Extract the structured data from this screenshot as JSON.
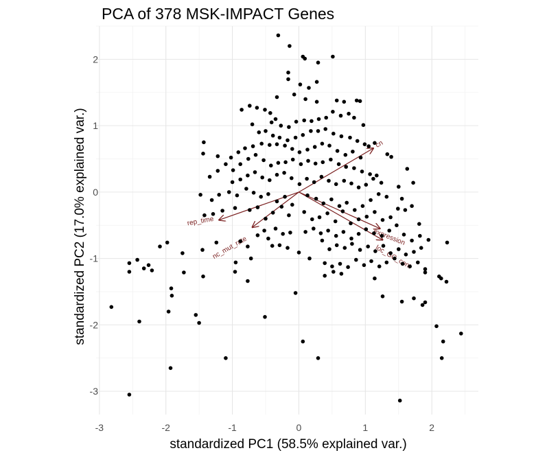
{
  "chart_data": {
    "type": "scatter",
    "title": "PCA of 378 MSK-IMPACT Genes",
    "xlabel": "standardized PC1 (58.5% explained var.)",
    "ylabel": "standardized PC2 (17.0% explained var.)",
    "xlim": [
      -3.05,
      2.7
    ],
    "ylim": [
      -3.35,
      2.5
    ],
    "x_ticks": [
      -3,
      -2,
      -1,
      0,
      1,
      2
    ],
    "x_tick_labels": [
      "-3",
      "-2",
      "-1",
      "0",
      "1",
      "2"
    ],
    "y_ticks": [
      -3,
      -2,
      -1,
      0,
      1,
      2
    ],
    "y_tick_labels": [
      "-3",
      "-2",
      "-1",
      "0",
      "1",
      "2"
    ],
    "grid": true,
    "point_color": "#000000",
    "arrow_color": "#7a1f1f",
    "points": [
      [
        -0.31,
        2.36
      ],
      [
        0.06,
        2.04
      ],
      [
        0.09,
        2.01
      ],
      [
        0.51,
        2.04
      ],
      [
        0.29,
        1.95
      ],
      [
        -0.14,
        2.2
      ],
      [
        -0.16,
        1.8
      ],
      [
        -0.16,
        1.7
      ],
      [
        0.27,
        1.66
      ],
      [
        0.02,
        1.62
      ],
      [
        0.15,
        1.57
      ],
      [
        -0.33,
        1.43
      ],
      [
        -0.07,
        1.47
      ],
      [
        0.1,
        1.4
      ],
      [
        0.27,
        1.36
      ],
      [
        0.57,
        1.38
      ],
      [
        0.68,
        1.36
      ],
      [
        0.87,
        1.38
      ],
      [
        0.92,
        1.37
      ],
      [
        -0.74,
        1.3
      ],
      [
        -0.86,
        1.24
      ],
      [
        -0.63,
        1.27
      ],
      [
        -0.51,
        1.24
      ],
      [
        -0.43,
        1.19
      ],
      [
        -0.41,
        1.05
      ],
      [
        -0.35,
        1.1
      ],
      [
        -0.27,
        1.0
      ],
      [
        -0.15,
        0.98
      ],
      [
        -0.04,
        1.06
      ],
      [
        0.08,
        1.08
      ],
      [
        0.19,
        1.07
      ],
      [
        0.3,
        1.1
      ],
      [
        0.41,
        1.12
      ],
      [
        0.51,
        1.21
      ],
      [
        0.63,
        1.15
      ],
      [
        0.75,
        1.18
      ],
      [
        0.83,
        1.12
      ],
      [
        0.97,
        1.01
      ],
      [
        -0.7,
        1.02
      ],
      [
        -0.6,
        0.9
      ],
      [
        -0.5,
        0.92
      ],
      [
        -0.39,
        0.85
      ],
      [
        -0.29,
        0.82
      ],
      [
        -0.17,
        0.78
      ],
      [
        -0.05,
        0.82
      ],
      [
        0.06,
        0.86
      ],
      [
        0.18,
        0.92
      ],
      [
        0.29,
        0.92
      ],
      [
        0.4,
        0.95
      ],
      [
        0.52,
        0.88
      ],
      [
        0.64,
        0.84
      ],
      [
        0.77,
        0.82
      ],
      [
        0.88,
        0.77
      ],
      [
        0.99,
        0.72
      ],
      [
        1.05,
        0.69
      ],
      [
        1.14,
        0.74
      ],
      [
        -1.02,
        0.52
      ],
      [
        -0.91,
        0.6
      ],
      [
        -0.81,
        0.66
      ],
      [
        -0.69,
        0.69
      ],
      [
        -0.56,
        0.73
      ],
      [
        -0.44,
        0.71
      ],
      [
        -0.33,
        0.72
      ],
      [
        -0.21,
        0.7
      ],
      [
        -0.1,
        0.65
      ],
      [
        0.01,
        0.6
      ],
      [
        0.13,
        0.64
      ],
      [
        0.24,
        0.68
      ],
      [
        0.35,
        0.73
      ],
      [
        0.46,
        0.7
      ],
      [
        0.58,
        0.62
      ],
      [
        0.7,
        0.56
      ],
      [
        0.81,
        0.61
      ],
      [
        0.93,
        0.52
      ],
      [
        -1.43,
        0.75
      ],
      [
        -1.44,
        0.58
      ],
      [
        -1.22,
        0.54
      ],
      [
        -1.1,
        0.42
      ],
      [
        -0.99,
        0.33
      ],
      [
        -0.88,
        0.42
      ],
      [
        -0.76,
        0.5
      ],
      [
        -0.65,
        0.56
      ],
      [
        -0.53,
        0.48
      ],
      [
        -0.42,
        0.4
      ],
      [
        -0.31,
        0.44
      ],
      [
        -0.2,
        0.45
      ],
      [
        -0.09,
        0.49
      ],
      [
        0.03,
        0.42
      ],
      [
        0.14,
        0.47
      ],
      [
        0.25,
        0.43
      ],
      [
        0.36,
        0.45
      ],
      [
        0.48,
        0.49
      ],
      [
        0.6,
        0.42
      ],
      [
        0.71,
        0.38
      ],
      [
        0.83,
        0.36
      ],
      [
        0.95,
        0.31
      ],
      [
        1.07,
        0.27
      ],
      [
        1.17,
        0.25
      ],
      [
        -1.34,
        0.23
      ],
      [
        -1.22,
        0.32
      ],
      [
        -1.0,
        0.15
      ],
      [
        -0.88,
        0.19
      ],
      [
        -0.77,
        0.25
      ],
      [
        -0.66,
        0.3
      ],
      [
        -0.55,
        0.22
      ],
      [
        -0.44,
        0.18
      ],
      [
        -0.33,
        0.26
      ],
      [
        -0.22,
        0.29
      ],
      [
        -0.11,
        0.21
      ],
      [
        0.01,
        0.12
      ],
      [
        0.12,
        0.2
      ],
      [
        0.23,
        0.15
      ],
      [
        0.34,
        0.23
      ],
      [
        0.45,
        0.17
      ],
      [
        0.56,
        0.12
      ],
      [
        0.68,
        0.17
      ],
      [
        0.79,
        0.13
      ],
      [
        0.9,
        0.07
      ],
      [
        1.01,
        0.11
      ],
      [
        1.12,
        0.2
      ],
      [
        1.24,
        0.14
      ],
      [
        1.33,
        0.57
      ],
      [
        1.39,
        0.53
      ],
      [
        -1.48,
        -0.04
      ],
      [
        -1.31,
        -0.12
      ],
      [
        -1.2,
        -0.04
      ],
      [
        -1.05,
        0.0
      ],
      [
        -0.93,
        -0.05
      ],
      [
        -0.79,
        0.05
      ],
      [
        -0.68,
        -0.01
      ],
      [
        -0.57,
        -0.07
      ],
      [
        -0.46,
        -0.03
      ],
      [
        -0.33,
        -0.14
      ],
      [
        -0.21,
        -0.07
      ],
      [
        -0.1,
        -0.19
      ],
      [
        0.13,
        -0.05
      ],
      [
        0.26,
        -0.1
      ],
      [
        0.37,
        -0.17
      ],
      [
        0.49,
        -0.11
      ],
      [
        0.61,
        -0.21
      ],
      [
        0.72,
        -0.16
      ],
      [
        0.84,
        -0.27
      ],
      [
        0.96,
        -0.21
      ],
      [
        1.08,
        -0.12
      ],
      [
        1.2,
        -0.03
      ],
      [
        1.32,
        -0.07
      ],
      [
        1.5,
        0.08
      ],
      [
        1.63,
        0.35
      ],
      [
        1.72,
        0.14
      ],
      [
        1.55,
        -0.1
      ],
      [
        -1.42,
        -0.35
      ],
      [
        -1.29,
        -0.33
      ],
      [
        -1.15,
        -0.28
      ],
      [
        -0.96,
        -0.24
      ],
      [
        -0.74,
        -0.27
      ],
      [
        -0.62,
        -0.23
      ],
      [
        -0.5,
        -0.4
      ],
      [
        -0.39,
        -0.31
      ],
      [
        -0.26,
        -0.22
      ],
      [
        -0.15,
        -0.35
      ],
      [
        0.08,
        -0.3
      ],
      [
        0.2,
        -0.41
      ],
      [
        0.31,
        -0.38
      ],
      [
        0.43,
        -0.32
      ],
      [
        0.55,
        -0.44
      ],
      [
        0.66,
        -0.29
      ],
      [
        0.78,
        -0.47
      ],
      [
        0.9,
        -0.41
      ],
      [
        1.02,
        -0.37
      ],
      [
        1.14,
        -0.3
      ],
      [
        1.26,
        -0.42
      ],
      [
        1.38,
        -0.38
      ],
      [
        1.49,
        -0.25
      ],
      [
        1.6,
        -0.27
      ],
      [
        1.7,
        -0.21
      ],
      [
        1.81,
        -0.48
      ],
      [
        -0.62,
        -0.65
      ],
      [
        -0.52,
        -0.58
      ],
      [
        -0.46,
        -0.7
      ],
      [
        -0.35,
        -0.55
      ],
      [
        -0.24,
        -0.63
      ],
      [
        -0.13,
        -0.61
      ],
      [
        0.1,
        -0.6
      ],
      [
        0.22,
        -0.55
      ],
      [
        0.33,
        -0.62
      ],
      [
        0.44,
        -0.58
      ],
      [
        0.56,
        -0.66
      ],
      [
        0.67,
        -0.6
      ],
      [
        0.79,
        -0.7
      ],
      [
        0.9,
        -0.63
      ],
      [
        1.01,
        -0.56
      ],
      [
        1.13,
        -0.62
      ],
      [
        1.25,
        -0.66
      ],
      [
        1.36,
        -0.58
      ],
      [
        1.47,
        -0.5
      ],
      [
        1.58,
        -0.64
      ],
      [
        1.7,
        -0.73
      ],
      [
        1.82,
        -0.66
      ],
      [
        1.95,
        -0.72
      ],
      [
        -0.88,
        -0.74
      ],
      [
        -0.77,
        -0.82
      ],
      [
        -0.4,
        -0.81
      ],
      [
        -0.29,
        -0.8
      ],
      [
        -0.17,
        -0.84
      ],
      [
        0.35,
        -0.73
      ],
      [
        0.46,
        -0.86
      ],
      [
        0.57,
        -0.8
      ],
      [
        0.69,
        -0.84
      ],
      [
        0.8,
        -0.78
      ],
      [
        0.92,
        -0.87
      ],
      [
        1.04,
        -0.82
      ],
      [
        1.15,
        -0.89
      ],
      [
        1.27,
        -0.81
      ],
      [
        1.38,
        -0.92
      ],
      [
        1.5,
        -0.86
      ],
      [
        1.61,
        -0.94
      ],
      [
        1.73,
        -0.9
      ],
      [
        1.84,
        -0.84
      ],
      [
        2.23,
        -0.76
      ],
      [
        -2.09,
        -0.82
      ],
      [
        -1.98,
        -0.76
      ],
      [
        -1.75,
        -0.92
      ],
      [
        -1.45,
        -0.87
      ],
      [
        -1.24,
        -0.76
      ],
      [
        -0.95,
        -1.06
      ],
      [
        -0.72,
        -1.0
      ],
      [
        0.0,
        -0.91
      ],
      [
        0.16,
        -1.0
      ],
      [
        0.39,
        -1.07
      ],
      [
        0.5,
        -1.12
      ],
      [
        0.62,
        -1.08
      ],
      [
        0.74,
        -1.13
      ],
      [
        0.86,
        -1.02
      ],
      [
        0.98,
        -1.1
      ],
      [
        1.09,
        -1.04
      ],
      [
        1.21,
        -1.12
      ],
      [
        1.32,
        -1.06
      ],
      [
        1.44,
        -1.0
      ],
      [
        1.56,
        -1.08
      ],
      [
        1.67,
        -1.12
      ],
      [
        1.79,
        -1.06
      ],
      [
        1.9,
        -1.16
      ],
      [
        -2.55,
        -1.07
      ],
      [
        -2.55,
        -1.2
      ],
      [
        -2.43,
        -1.02
      ],
      [
        -2.33,
        -1.15
      ],
      [
        -2.26,
        -1.1
      ],
      [
        -2.21,
        -1.18
      ],
      [
        -1.73,
        -1.21
      ],
      [
        -1.44,
        -1.27
      ],
      [
        -0.96,
        -1.2
      ],
      [
        -0.77,
        -1.34
      ],
      [
        0.39,
        -1.26
      ],
      [
        0.52,
        -1.2
      ],
      [
        0.64,
        -1.23
      ],
      [
        1.14,
        -1.3
      ],
      [
        1.9,
        -1.21
      ],
      [
        2.11,
        -1.27
      ],
      [
        2.14,
        -1.3
      ],
      [
        2.22,
        -1.35
      ],
      [
        -2.82,
        -1.73
      ],
      [
        -1.91,
        -1.56
      ],
      [
        -1.92,
        -1.45
      ],
      [
        -0.05,
        -1.52
      ],
      [
        1.26,
        -1.57
      ],
      [
        1.55,
        -1.65
      ],
      [
        1.73,
        -1.6
      ],
      [
        1.86,
        -1.7
      ],
      [
        1.9,
        -1.66
      ],
      [
        -1.96,
        -1.8
      ],
      [
        -1.55,
        -1.85
      ],
      [
        -1.5,
        -1.97
      ],
      [
        -2.4,
        -1.95
      ],
      [
        -0.51,
        -1.88
      ],
      [
        2.07,
        -2.02
      ],
      [
        2.17,
        -2.25
      ],
      [
        2.44,
        -2.13
      ],
      [
        0.06,
        -2.25
      ],
      [
        -1.1,
        -2.5
      ],
      [
        0.29,
        -2.5
      ],
      [
        2.15,
        -2.5
      ],
      [
        -1.93,
        -2.65
      ],
      [
        -2.55,
        -3.05
      ],
      [
        1.52,
        -3.14
      ]
    ],
    "arrows": [
      {
        "name": "rep_time",
        "x": -1.2,
        "y": -0.42,
        "label_x": -1.48,
        "label_y": -0.44,
        "angle": -10
      },
      {
        "name": "nc_mut_rate",
        "x": -0.7,
        "y": -0.53,
        "label_x": -1.04,
        "label_y": -0.84,
        "angle": -30
      },
      {
        "name": "cn",
        "x": 1.12,
        "y": 0.66,
        "label_x": 1.21,
        "label_y": 0.72,
        "angle": -30
      },
      {
        "name": "expression",
        "x": 1.26,
        "y": -0.72,
        "label_x": 1.36,
        "label_y": -0.68,
        "angle": 22
      },
      {
        "name": "loc_GC_cont",
        "x": 1.22,
        "y": -0.55,
        "label_x": 1.42,
        "label_y": -0.98,
        "angle": 30
      }
    ]
  }
}
